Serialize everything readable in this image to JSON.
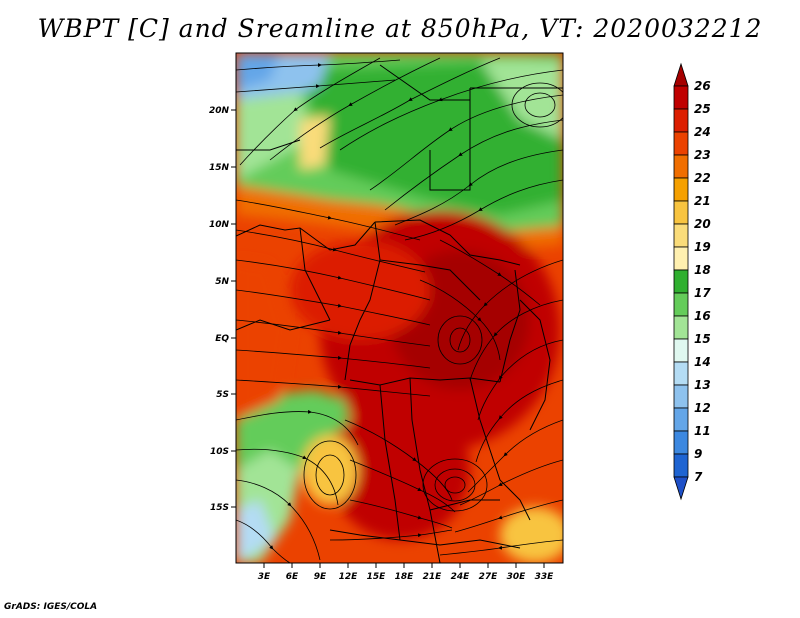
{
  "title": "WBPT [C] and Sreamline at 850hPa, VT: 2020032212",
  "credit": "GrADS: IGES/COLA",
  "map": {
    "lat_ticks": [
      "20N",
      "15N",
      "10N",
      "5N",
      "EQ",
      "5S",
      "10S",
      "15S"
    ],
    "lon_ticks": [
      "3E",
      "6E",
      "9E",
      "12E",
      "15E",
      "18E",
      "21E",
      "24E",
      "27E",
      "30E",
      "33E"
    ]
  },
  "colorbar": {
    "levels": [
      {
        "label": "26",
        "color": "#a50000"
      },
      {
        "label": "25",
        "color": "#c00000"
      },
      {
        "label": "24",
        "color": "#dc1e00"
      },
      {
        "label": "23",
        "color": "#eb4200"
      },
      {
        "label": "22",
        "color": "#f06e00"
      },
      {
        "label": "21",
        "color": "#f5a000"
      },
      {
        "label": "20",
        "color": "#f8c440"
      },
      {
        "label": "19",
        "color": "#fadc7a"
      },
      {
        "label": "18",
        "color": "#fff0b0"
      },
      {
        "label": "17",
        "color": "#30b030"
      },
      {
        "label": "16",
        "color": "#64cc5a"
      },
      {
        "label": "15",
        "color": "#a2e496"
      },
      {
        "label": "14",
        "color": "#e0f8f0"
      },
      {
        "label": "13",
        "color": "#b4dcf4"
      },
      {
        "label": "12",
        "color": "#8ec2ee"
      },
      {
        "label": "11",
        "color": "#64a6e8"
      },
      {
        "label": "9",
        "color": "#3c88e0"
      },
      {
        "label": "7",
        "color": "#1e64d2"
      }
    ],
    "bottom_color": "#1e50c8"
  }
}
